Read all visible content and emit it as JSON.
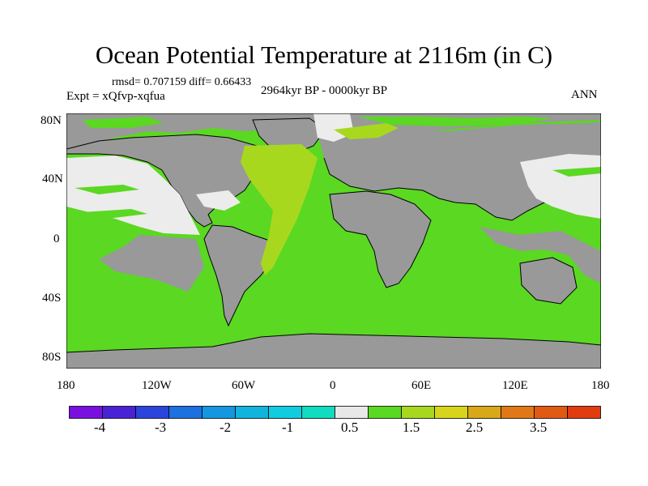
{
  "title": "Ocean Potential Temperature at 2116m (in C)",
  "stats": "rmsd= 0.707159 diff= 0.66433",
  "experiment": "Expt = xQfvp-xqfua",
  "period": "2964kyr BP - 0000kyr BP",
  "season": "ANN",
  "y_ticks": [
    "80N",
    "40N",
    "0",
    "40S",
    "80S"
  ],
  "x_ticks": [
    "180",
    "120W",
    "60W",
    "0",
    "60E",
    "120E",
    "180"
  ],
  "colors": {
    "land": "#999999",
    "ocean_default": "#5ad822",
    "north_atlantic": "#a8d81e",
    "white": "#ececec",
    "coast": "#000000"
  },
  "colorbar": {
    "colors": [
      "#7a10e0",
      "#4a22d6",
      "#2a44dc",
      "#1c70e0",
      "#1496e0",
      "#10b4dc",
      "#10cce0",
      "#10dcc0",
      "#e8e8e8",
      "#5ad822",
      "#a8d81e",
      "#d8d41c",
      "#d8a818",
      "#e07818",
      "#e05a14",
      "#e03c10"
    ],
    "labels": [
      "-4",
      "-3",
      "-2",
      "-1",
      "0.5",
      "1.5",
      "2.5",
      "3.5"
    ]
  }
}
